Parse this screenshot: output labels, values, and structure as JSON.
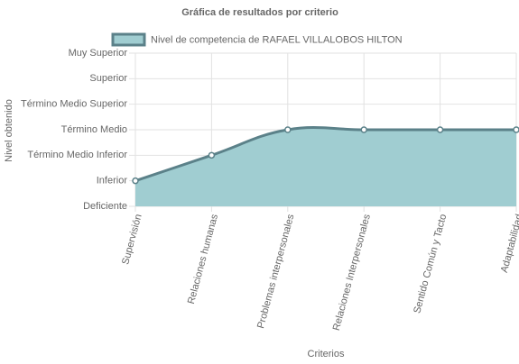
{
  "chart_data": {
    "type": "line",
    "title": "Gráfica de resultados por criterio",
    "x_label": "Criterios",
    "y_label": "Nivel obtenido",
    "categories": [
      "Supervisión",
      "Relaciones humanas",
      "Problemas interpersonales",
      "Relaciones Interpersonales",
      "Sentido Común y Tacto",
      "Adaptabilidad"
    ],
    "series": [
      {
        "name": "Nivel de competencia de RAFAEL VILLALOBOS HILTON",
        "color": "#5b8189",
        "fill": "#a0cdd1",
        "values": [
          1,
          2,
          3,
          3,
          3,
          3
        ]
      }
    ],
    "ylim": [
      0,
      6
    ],
    "yticks": [
      {
        "value": 0,
        "label": "Deficiente"
      },
      {
        "value": 1,
        "label": "Inferior"
      },
      {
        "value": 2,
        "label": "Término Medio Inferior"
      },
      {
        "value": 3,
        "label": "Término Medio"
      },
      {
        "value": 4,
        "label": "Término Medio Superior"
      },
      {
        "value": 5,
        "label": "Superior"
      },
      {
        "value": 6,
        "label": "Muy Superior"
      }
    ],
    "grid": true,
    "legend": "top"
  }
}
